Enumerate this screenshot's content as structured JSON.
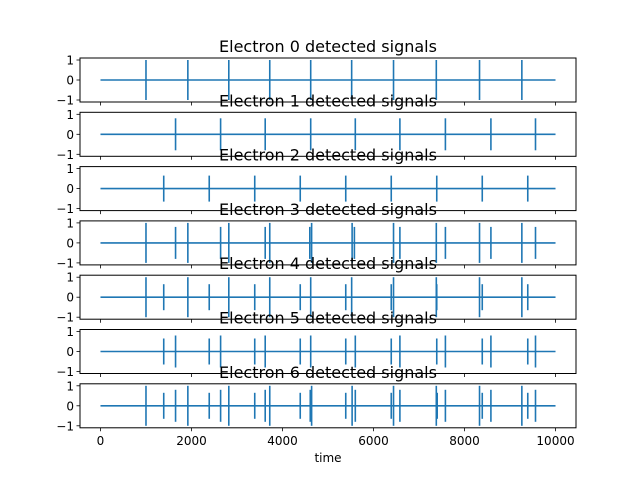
{
  "chart_data": [
    {
      "type": "line",
      "title": "Electron 0 detected signals",
      "x_range": [
        0,
        10000
      ],
      "ylim": [
        -1,
        1
      ],
      "yticks": [
        -1,
        0,
        1
      ],
      "color": "#1f77b4",
      "spikes": [
        {
          "x": 1000,
          "amp": 1.0
        },
        {
          "x": 1920,
          "amp": 1.0
        },
        {
          "x": 2820,
          "amp": 1.0
        },
        {
          "x": 3720,
          "amp": 1.0
        },
        {
          "x": 4620,
          "amp": 1.0
        },
        {
          "x": 5520,
          "amp": 1.0
        },
        {
          "x": 6440,
          "amp": 1.0
        },
        {
          "x": 7380,
          "amp": 1.0
        },
        {
          "x": 8330,
          "amp": 1.0
        },
        {
          "x": 9260,
          "amp": 1.0
        }
      ]
    },
    {
      "type": "line",
      "title": "Electron 1 detected signals",
      "x_range": [
        0,
        10000
      ],
      "ylim": [
        -1,
        1
      ],
      "yticks": [
        -1,
        0,
        1
      ],
      "color": "#1f77b4",
      "spikes": [
        {
          "x": 1650,
          "amp": 0.8
        },
        {
          "x": 2640,
          "amp": 0.8
        },
        {
          "x": 3620,
          "amp": 0.8
        },
        {
          "x": 4620,
          "amp": 0.8
        },
        {
          "x": 5600,
          "amp": 0.8
        },
        {
          "x": 6580,
          "amp": 0.8
        },
        {
          "x": 7580,
          "amp": 0.8
        },
        {
          "x": 8580,
          "amp": 0.8
        },
        {
          "x": 9560,
          "amp": 0.8
        }
      ]
    },
    {
      "type": "line",
      "title": "Electron 2 detected signals",
      "x_range": [
        0,
        10000
      ],
      "ylim": [
        -1,
        1
      ],
      "yticks": [
        -1,
        0,
        1
      ],
      "color": "#1f77b4",
      "spikes": [
        {
          "x": 1390,
          "amp": 0.65
        },
        {
          "x": 2390,
          "amp": 0.65
        },
        {
          "x": 3390,
          "amp": 0.65
        },
        {
          "x": 4390,
          "amp": 0.65
        },
        {
          "x": 5390,
          "amp": 0.65
        },
        {
          "x": 6390,
          "amp": 0.65
        },
        {
          "x": 7390,
          "amp": 0.65
        },
        {
          "x": 8390,
          "amp": 0.65
        },
        {
          "x": 9390,
          "amp": 0.65
        }
      ]
    },
    {
      "type": "line",
      "title": "Electron 3 detected signals",
      "x_range": [
        0,
        10000
      ],
      "ylim": [
        -1,
        1
      ],
      "yticks": [
        -1,
        0,
        1
      ],
      "color": "#1f77b4",
      "spikes": [
        {
          "x": 1000,
          "amp": 1.0
        },
        {
          "x": 1650,
          "amp": 0.8
        },
        {
          "x": 1920,
          "amp": 1.0
        },
        {
          "x": 2640,
          "amp": 0.8
        },
        {
          "x": 2820,
          "amp": 1.0
        },
        {
          "x": 3620,
          "amp": 0.8
        },
        {
          "x": 3720,
          "amp": 1.0
        },
        {
          "x": 4600,
          "amp": 0.8
        },
        {
          "x": 4640,
          "amp": 1.0
        },
        {
          "x": 5580,
          "amp": 0.8
        },
        {
          "x": 5530,
          "amp": 1.0
        },
        {
          "x": 6440,
          "amp": 1.0
        },
        {
          "x": 6580,
          "amp": 0.8
        },
        {
          "x": 7380,
          "amp": 1.0
        },
        {
          "x": 7580,
          "amp": 0.8
        },
        {
          "x": 8330,
          "amp": 1.0
        },
        {
          "x": 8580,
          "amp": 0.8
        },
        {
          "x": 9260,
          "amp": 1.0
        },
        {
          "x": 9560,
          "amp": 0.8
        }
      ]
    },
    {
      "type": "line",
      "title": "Electron 4 detected signals",
      "x_range": [
        0,
        10000
      ],
      "ylim": [
        -1,
        1
      ],
      "yticks": [
        -1,
        0,
        1
      ],
      "color": "#1f77b4",
      "spikes": [
        {
          "x": 1000,
          "amp": 1.0
        },
        {
          "x": 1390,
          "amp": 0.65
        },
        {
          "x": 1920,
          "amp": 1.0
        },
        {
          "x": 2390,
          "amp": 0.65
        },
        {
          "x": 2820,
          "amp": 1.0
        },
        {
          "x": 3390,
          "amp": 0.65
        },
        {
          "x": 3720,
          "amp": 1.0
        },
        {
          "x": 4390,
          "amp": 0.65
        },
        {
          "x": 4620,
          "amp": 1.0
        },
        {
          "x": 5390,
          "amp": 0.65
        },
        {
          "x": 5520,
          "amp": 1.0
        },
        {
          "x": 6390,
          "amp": 0.65
        },
        {
          "x": 6440,
          "amp": 1.0
        },
        {
          "x": 7380,
          "amp": 1.0
        },
        {
          "x": 7390,
          "amp": 0.65
        },
        {
          "x": 8330,
          "amp": 1.0
        },
        {
          "x": 8390,
          "amp": 0.65
        },
        {
          "x": 9260,
          "amp": 1.0
        },
        {
          "x": 9390,
          "amp": 0.65
        }
      ]
    },
    {
      "type": "line",
      "title": "Electron 5 detected signals",
      "x_range": [
        0,
        10000
      ],
      "ylim": [
        -1,
        1
      ],
      "yticks": [
        -1,
        0,
        1
      ],
      "color": "#1f77b4",
      "spikes": [
        {
          "x": 1390,
          "amp": 0.65
        },
        {
          "x": 1650,
          "amp": 0.8
        },
        {
          "x": 2390,
          "amp": 0.65
        },
        {
          "x": 2640,
          "amp": 0.8
        },
        {
          "x": 3390,
          "amp": 0.65
        },
        {
          "x": 3620,
          "amp": 0.8
        },
        {
          "x": 4390,
          "amp": 0.65
        },
        {
          "x": 4620,
          "amp": 0.8
        },
        {
          "x": 5390,
          "amp": 0.65
        },
        {
          "x": 5600,
          "amp": 0.8
        },
        {
          "x": 6390,
          "amp": 0.65
        },
        {
          "x": 6580,
          "amp": 0.8
        },
        {
          "x": 7390,
          "amp": 0.65
        },
        {
          "x": 7580,
          "amp": 0.8
        },
        {
          "x": 8390,
          "amp": 0.65
        },
        {
          "x": 8580,
          "amp": 0.8
        },
        {
          "x": 9390,
          "amp": 0.65
        },
        {
          "x": 9560,
          "amp": 0.8
        }
      ]
    },
    {
      "type": "line",
      "title": "Electron 6 detected signals",
      "x_range": [
        0,
        10000
      ],
      "ylim": [
        -1,
        1
      ],
      "yticks": [
        -1,
        0,
        1
      ],
      "xticks": [
        0,
        2000,
        4000,
        6000,
        8000,
        10000
      ],
      "xlabel": "time",
      "color": "#1f77b4",
      "spikes": [
        {
          "x": 1000,
          "amp": 1.0
        },
        {
          "x": 1390,
          "amp": 0.65
        },
        {
          "x": 1650,
          "amp": 0.8
        },
        {
          "x": 1920,
          "amp": 1.0
        },
        {
          "x": 2390,
          "amp": 0.65
        },
        {
          "x": 2640,
          "amp": 0.8
        },
        {
          "x": 2820,
          "amp": 1.0
        },
        {
          "x": 3390,
          "amp": 0.65
        },
        {
          "x": 3620,
          "amp": 0.8
        },
        {
          "x": 3720,
          "amp": 1.0
        },
        {
          "x": 4390,
          "amp": 0.65
        },
        {
          "x": 4610,
          "amp": 0.8
        },
        {
          "x": 4640,
          "amp": 1.0
        },
        {
          "x": 5390,
          "amp": 0.65
        },
        {
          "x": 5530,
          "amp": 1.0
        },
        {
          "x": 5600,
          "amp": 0.8
        },
        {
          "x": 6390,
          "amp": 0.65
        },
        {
          "x": 6440,
          "amp": 1.0
        },
        {
          "x": 6580,
          "amp": 0.8
        },
        {
          "x": 7380,
          "amp": 1.0
        },
        {
          "x": 7400,
          "amp": 0.65
        },
        {
          "x": 7580,
          "amp": 0.8
        },
        {
          "x": 8330,
          "amp": 1.0
        },
        {
          "x": 8390,
          "amp": 0.65
        },
        {
          "x": 8580,
          "amp": 0.8
        },
        {
          "x": 9260,
          "amp": 1.0
        },
        {
          "x": 9390,
          "amp": 0.65
        },
        {
          "x": 9560,
          "amp": 0.8
        }
      ]
    }
  ]
}
